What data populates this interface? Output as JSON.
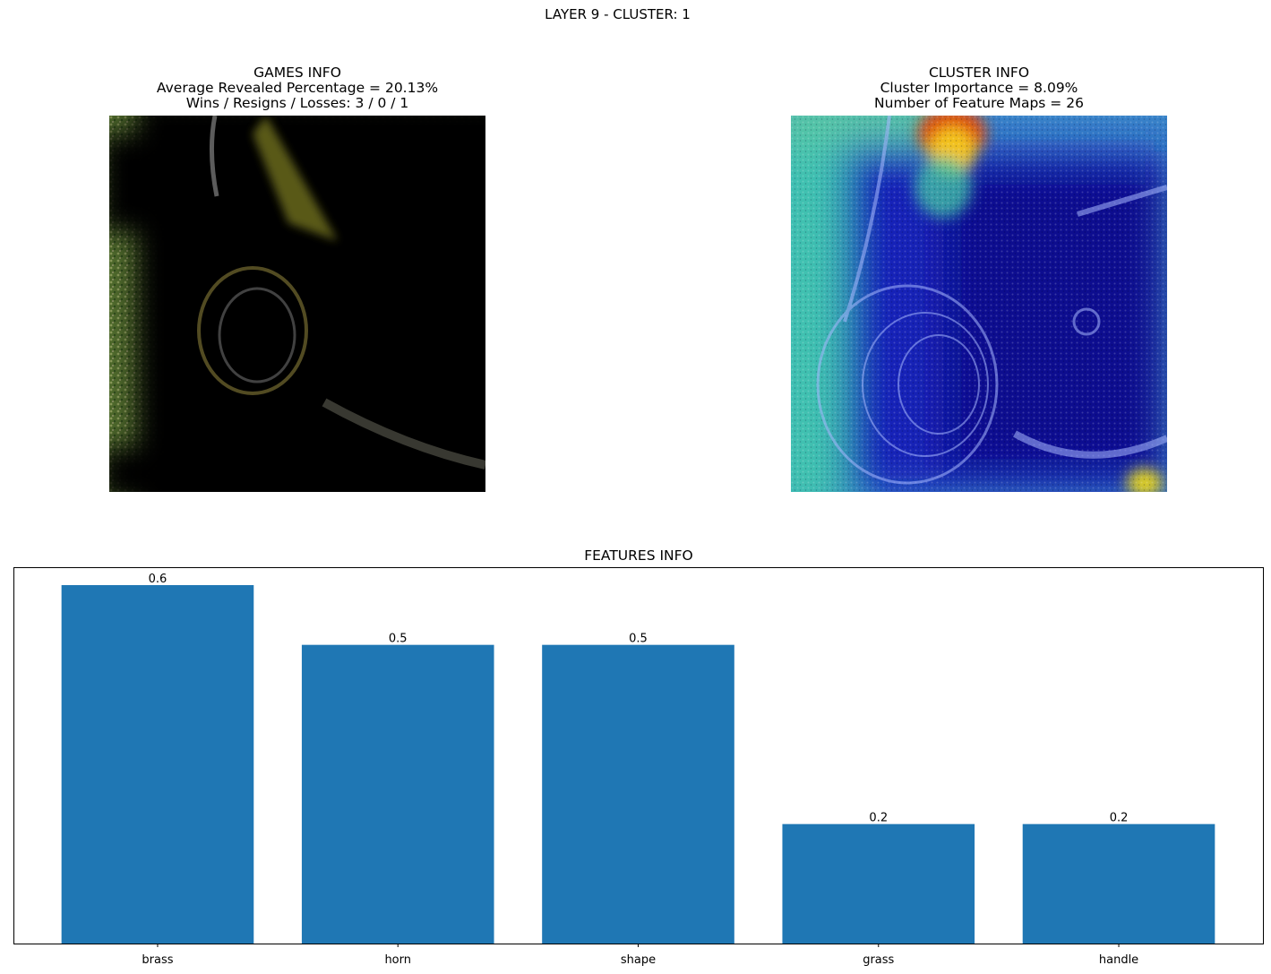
{
  "figure": {
    "suptitle": "LAYER 9 - CLUSTER: 1"
  },
  "games_info": {
    "heading": "GAMES INFO",
    "line1": "Average Revealed Percentage = 20.13%",
    "line2": "Wins / Resigns / Losses: 3 / 0 / 1"
  },
  "cluster_info": {
    "heading": "CLUSTER INFO",
    "line1": "Cluster Importance = 8.09%",
    "line2": "Number of Feature Maps = 26"
  },
  "features_info": {
    "title": "FEATURES INFO"
  },
  "chart_data": {
    "type": "bar",
    "title": "FEATURES INFO",
    "categories": [
      "brass",
      "horn",
      "shape",
      "grass",
      "handle"
    ],
    "values": [
      0.6,
      0.5,
      0.5,
      0.2,
      0.2
    ],
    "data_labels": [
      "0.6",
      "0.5",
      "0.5",
      "0.2",
      "0.2"
    ],
    "xlabel": "",
    "ylabel": "",
    "ylim": [
      0,
      0.63
    ],
    "yticks_visible": false,
    "grid": false,
    "bar_color": "#1f77b4"
  }
}
